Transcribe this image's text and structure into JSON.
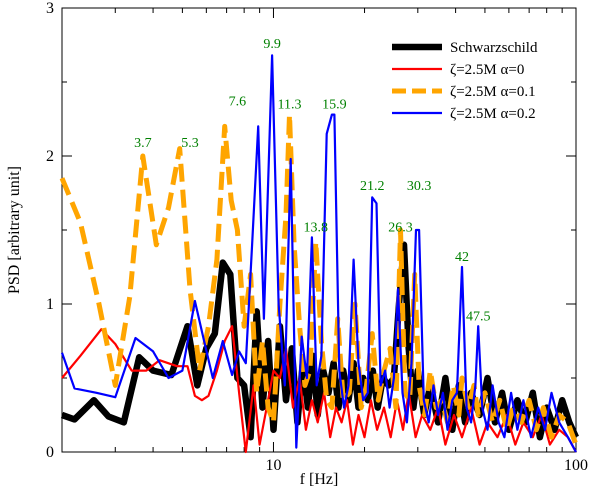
{
  "chart_data": {
    "type": "line",
    "xlabel": "f [Hz]",
    "ylabel": "PSD [arbitrary unit]",
    "xscale": "log",
    "xlim": [
      2,
      100
    ],
    "ylim": [
      0,
      3
    ],
    "x_ticks": [
      10,
      100
    ],
    "x_tick_labels": [
      "10",
      "100"
    ],
    "y_ticks": [
      0,
      1,
      2,
      3
    ],
    "y_tick_labels": [
      "0",
      "1",
      "2",
      "3"
    ],
    "grid": false,
    "legend_position": "top-right",
    "series": [
      {
        "name": "Schwarzschild",
        "color": "#000000",
        "style": "thick-solid",
        "x": [
          2,
          2.2,
          2.55,
          2.85,
          3.2,
          3.6,
          4.0,
          4.6,
          5.2,
          5.6,
          6.0,
          6.4,
          6.8,
          7.2,
          7.6,
          8.0,
          8.4,
          8.8,
          9.2,
          9.6,
          10.0,
          10.5,
          11.0,
          11.5,
          12.0,
          12.5,
          13.0,
          13.5,
          14.0,
          14.6,
          15.2,
          15.8,
          16.4,
          17.0,
          17.7,
          18.4,
          19.1,
          19.8,
          20.5,
          21.3,
          22.1,
          23.0,
          24.0,
          25.0,
          26.0,
          27.0,
          28.0,
          29.0,
          30.0,
          31.5,
          33.0,
          35.0,
          37.0,
          39.0,
          41.0,
          43.0,
          45.0,
          48.0,
          51.0,
          54.0,
          57.0,
          60.0,
          64.0,
          68.0,
          72.0,
          76.0,
          80.0,
          85.0,
          90.0,
          95.0,
          100.0
        ],
        "y": [
          0.25,
          0.22,
          0.35,
          0.24,
          0.2,
          0.64,
          0.55,
          0.52,
          0.85,
          0.45,
          0.7,
          0.8,
          1.28,
          1.2,
          0.5,
          0.45,
          0.1,
          0.95,
          0.3,
          0.75,
          0.15,
          0.85,
          0.35,
          0.7,
          0.2,
          0.6,
          0.3,
          0.65,
          0.25,
          0.55,
          0.4,
          0.6,
          0.3,
          0.55,
          0.35,
          0.6,
          0.3,
          0.5,
          0.35,
          0.55,
          0.3,
          0.5,
          0.45,
          0.5,
          1.0,
          1.4,
          0.7,
          0.3,
          0.55,
          0.25,
          0.45,
          0.2,
          0.5,
          0.15,
          0.45,
          0.2,
          0.4,
          0.25,
          0.5,
          0.2,
          0.4,
          0.15,
          0.35,
          0.2,
          0.4,
          0.1,
          0.3,
          0.15,
          0.35,
          0.2,
          0.1
        ]
      },
      {
        "name": "ζ=2.5M  α=0",
        "color": "#ff0000",
        "style": "solid",
        "x": [
          2,
          2.3,
          2.7,
          3.0,
          3.4,
          3.8,
          4.2,
          4.8,
          5.2,
          5.5,
          5.8,
          6.1,
          6.5,
          6.9,
          7.3,
          7.7,
          8.1,
          8.6,
          9.0,
          9.5,
          10.0,
          10.5,
          11.0,
          11.6,
          12.2,
          12.8,
          13.4,
          14.0,
          14.7,
          15.4,
          16.1,
          16.8,
          17.5,
          18.3,
          19.1,
          20.0,
          21.0,
          22.0,
          23.2,
          24.4,
          25.6,
          26.8,
          28.0,
          29.5,
          31.0,
          33.0,
          35.0,
          37.0,
          39.5,
          42.0,
          45.0,
          48.0,
          51.0,
          55.0,
          59.0,
          63.0,
          67.0,
          72.0,
          77.0,
          82.0,
          88.0,
          94.0,
          100.0
        ],
        "y": [
          0.5,
          0.65,
          0.83,
          0.73,
          0.55,
          0.55,
          0.62,
          0.58,
          0.58,
          0.38,
          0.35,
          0.38,
          0.55,
          0.75,
          0.85,
          0.4,
          0.0,
          0.45,
          0.05,
          0.3,
          0.55,
          0.5,
          0.7,
          0.3,
          0.5,
          0.15,
          0.35,
          0.2,
          0.4,
          0.1,
          0.3,
          0.2,
          0.35,
          0.05,
          0.25,
          0.1,
          0.35,
          0.15,
          0.3,
          0.1,
          0.35,
          0.15,
          0.4,
          0.1,
          0.25,
          0.15,
          0.3,
          0.05,
          0.25,
          0.1,
          0.3,
          0.05,
          0.2,
          0.1,
          0.25,
          0.05,
          0.2,
          0.1,
          0.25,
          0.05,
          0.15,
          0.1,
          0.0
        ]
      },
      {
        "name": "ζ=2.5M  α=0.1",
        "color": "#ffa500",
        "style": "thick-dashed",
        "x": [
          2,
          2.3,
          2.65,
          3.0,
          3.35,
          3.7,
          4.1,
          4.5,
          4.9,
          5.3,
          5.7,
          6.1,
          6.5,
          6.9,
          7.25,
          7.6,
          8.0,
          8.4,
          8.8,
          9.2,
          9.6,
          10.0,
          10.5,
          11.0,
          11.3,
          11.7,
          12.2,
          12.7,
          13.2,
          13.8,
          14.4,
          15.0,
          15.6,
          16.3,
          17.0,
          17.8,
          18.6,
          19.5,
          20.3,
          21.2,
          22.2,
          23.2,
          24.3,
          25.4,
          26.3,
          27.2,
          28.2,
          29.3,
          30.3,
          31.6,
          33.0,
          34.5,
          36.0,
          37.6,
          39.3,
          41.0,
          42.0,
          44.0,
          46.0,
          47.5,
          50.0,
          53.0,
          56.0,
          59.0,
          62.0,
          66.0,
          70.0,
          74.0,
          78.0,
          83.0,
          88.0,
          94.0,
          100.0
        ],
        "y": [
          1.85,
          1.55,
          1.0,
          0.45,
          1.05,
          2.0,
          1.4,
          1.65,
          2.05,
          1.1,
          0.55,
          0.85,
          1.3,
          2.2,
          1.7,
          1.5,
          0.85,
          1.2,
          0.4,
          0.75,
          0.3,
          0.2,
          1.0,
          1.6,
          2.28,
          1.4,
          0.85,
          0.45,
          0.55,
          1.42,
          0.75,
          0.35,
          0.3,
          0.9,
          0.35,
          0.4,
          1.0,
          0.3,
          0.45,
          0.8,
          0.35,
          0.55,
          0.7,
          0.3,
          1.5,
          0.4,
          0.35,
          1.2,
          0.45,
          0.25,
          0.55,
          0.3,
          0.35,
          0.2,
          0.45,
          0.25,
          0.5,
          0.3,
          0.45,
          0.25,
          0.4,
          0.2,
          0.35,
          0.15,
          0.3,
          0.2,
          0.35,
          0.15,
          0.3,
          0.1,
          0.25,
          0.2,
          0.05
        ]
      },
      {
        "name": "ζ=2.5M  α=0.2",
        "color": "#0000ff",
        "style": "solid",
        "x": [
          2,
          2.2,
          2.6,
          3.0,
          3.5,
          4.0,
          4.5,
          5.0,
          5.5,
          5.9,
          6.3,
          6.8,
          7.3,
          7.7,
          8.1,
          8.5,
          8.9,
          9.3,
          9.9,
          10.4,
          10.9,
          11.4,
          11.9,
          12.4,
          12.9,
          13.4,
          13.9,
          14.4,
          15.0,
          15.6,
          15.9,
          16.5,
          17.1,
          17.7,
          18.4,
          19.1,
          19.8,
          20.5,
          21.2,
          21.9,
          22.6,
          23.4,
          24.2,
          25.0,
          25.8,
          26.7,
          27.6,
          28.6,
          29.6,
          30.3,
          31.4,
          32.6,
          33.8,
          35.0,
          36.3,
          37.6,
          39.0,
          40.4,
          42.0,
          43.5,
          45.0,
          46.5,
          47.5,
          49.0,
          51.0,
          53.0,
          55.5,
          58.0,
          61.0,
          64.0,
          67.0,
          71.0,
          75.0,
          79.0,
          83.0,
          88.0,
          94.0,
          100.0
        ],
        "y": [
          0.67,
          0.43,
          0.4,
          0.37,
          0.77,
          0.68,
          0.5,
          0.55,
          1.02,
          0.75,
          0.5,
          0.75,
          0.52,
          0.68,
          0.6,
          1.4,
          2.2,
          0.9,
          2.68,
          1.0,
          0.45,
          1.98,
          0.03,
          0.78,
          0.5,
          1.45,
          0.45,
          0.65,
          2.15,
          2.28,
          2.28,
          0.55,
          0.3,
          0.45,
          1.3,
          0.6,
          0.35,
          0.4,
          1.72,
          1.68,
          0.45,
          0.55,
          0.3,
          0.5,
          1.1,
          0.4,
          0.2,
          0.6,
          1.5,
          1.5,
          0.35,
          0.2,
          0.45,
          0.25,
          0.4,
          0.15,
          0.35,
          0.4,
          1.25,
          0.3,
          0.2,
          0.45,
          0.85,
          0.3,
          0.15,
          0.45,
          0.2,
          0.1,
          0.4,
          0.15,
          0.35,
          0.1,
          0.3,
          0.15,
          0.4,
          0.2,
          0.1,
          0.0
        ]
      }
    ],
    "annotations": [
      {
        "text": "3.7",
        "x": 3.7,
        "y": 2.06,
        "color": "#008000"
      },
      {
        "text": "5.3",
        "x": 5.3,
        "y": 2.06,
        "color": "#008000"
      },
      {
        "text": "7.6",
        "x": 7.6,
        "y": 2.34,
        "color": "#008000"
      },
      {
        "text": "9.9",
        "x": 9.9,
        "y": 2.73,
        "color": "#008000"
      },
      {
        "text": "11.3",
        "x": 11.3,
        "y": 2.32,
        "color": "#008000"
      },
      {
        "text": "15.9",
        "x": 15.9,
        "y": 2.32,
        "color": "#008000"
      },
      {
        "text": "13.8",
        "x": 13.8,
        "y": 1.49,
        "color": "#008000"
      },
      {
        "text": "21.2",
        "x": 21.2,
        "y": 1.77,
        "color": "#008000"
      },
      {
        "text": "30.3",
        "x": 30.3,
        "y": 1.77,
        "color": "#008000"
      },
      {
        "text": "26.3",
        "x": 26.3,
        "y": 1.49,
        "color": "#008000"
      },
      {
        "text": "42",
        "x": 42.0,
        "y": 1.29,
        "color": "#008000"
      },
      {
        "text": "47.5",
        "x": 47.5,
        "y": 0.89,
        "color": "#008000"
      }
    ]
  }
}
